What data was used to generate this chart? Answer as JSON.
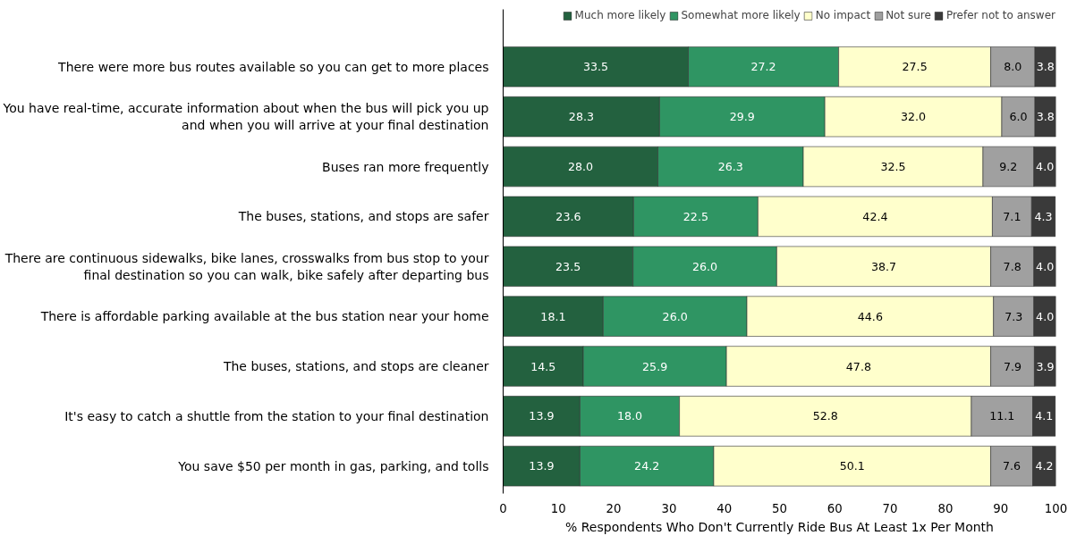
{
  "chart_data": {
    "type": "bar",
    "orientation": "horizontal",
    "stacked": true,
    "legend": "top right",
    "grid": false,
    "xlabel": "% Respondents Who Don't Currently Ride Bus At Least 1x Per Month",
    "xlim": [
      0,
      100
    ],
    "xticks": [
      0,
      10,
      20,
      30,
      40,
      50,
      60,
      70,
      80,
      90,
      100
    ],
    "categories": [
      "There were more bus routes available so you can get to more places",
      "You have real-time, accurate information about when the bus will pick you up and when you will arrive at your final destination",
      "Buses ran more frequently",
      "The buses, stations, and stops are safer",
      "There are continuous sidewalks, bike lanes, crosswalks from bus stop to your final destination so you can walk, bike safely after departing bus",
      "There is affordable parking available at the bus station near your home",
      "The buses, stations, and stops are cleaner",
      "It's easy to catch a shuttle from the station to your final destination",
      "You save $50 per month in gas, parking, and tolls"
    ],
    "series": [
      {
        "name": "Much more likely",
        "color": "#23613f",
        "values": [
          33.5,
          28.3,
          28.0,
          23.6,
          23.5,
          18.1,
          14.5,
          13.9,
          13.9
        ],
        "value_labels": [
          "33.5",
          "28.3",
          "28.0",
          "23.6",
          "23.5",
          "18.1",
          "14.5",
          "13.9",
          "13.9"
        ]
      },
      {
        "name": "Somewhat more likely",
        "color": "#2f9563",
        "values": [
          27.2,
          29.9,
          26.3,
          22.5,
          26.0,
          26.0,
          25.9,
          18.0,
          24.2
        ],
        "value_labels": [
          "27.2",
          "29.9",
          "26.3",
          "22.5",
          "26.0",
          "26.0",
          "25.9",
          "18.0",
          "24.2"
        ]
      },
      {
        "name": "No impact",
        "color": "#ffffcc",
        "values": [
          27.5,
          32.0,
          32.5,
          42.4,
          38.7,
          44.6,
          47.8,
          52.8,
          50.1
        ],
        "value_labels": [
          "27.5",
          "32.0",
          "32.5",
          "42.4",
          "38.7",
          "44.6",
          "47.8",
          "52.8",
          "50.1"
        ]
      },
      {
        "name": "Not sure",
        "color": "#a0a0a0",
        "values": [
          8.0,
          6.0,
          9.2,
          7.1,
          7.8,
          7.3,
          7.9,
          11.1,
          7.6
        ],
        "value_labels": [
          "8.0",
          "6.0",
          "9.2",
          "7.1",
          "7.8",
          "7.3",
          "7.9",
          "11.1",
          "7.6"
        ]
      },
      {
        "name": "Prefer not to answer",
        "color": "#3a3a3a",
        "values": [
          3.8,
          3.8,
          4.0,
          4.3,
          4.0,
          4.0,
          3.9,
          4.1,
          4.2
        ],
        "value_labels": [
          "3.8",
          "3.8",
          "4.0",
          "4.3",
          "4.0",
          "4.0",
          "3.9",
          "4.1",
          "4.2"
        ]
      }
    ]
  }
}
